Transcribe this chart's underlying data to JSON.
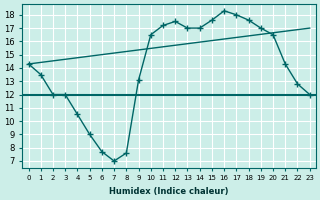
{
  "xlabel": "Humidex (Indice chaleur)",
  "ylabel": "",
  "bg_color": "#cceee8",
  "grid_color": "#ffffff",
  "line_color": "#006666",
  "xlim": [
    -0.5,
    23.5
  ],
  "ylim": [
    6.5,
    18.8
  ],
  "yticks": [
    7,
    8,
    9,
    10,
    11,
    12,
    13,
    14,
    15,
    16,
    17,
    18
  ],
  "xticks": [
    0,
    1,
    2,
    3,
    4,
    5,
    6,
    7,
    8,
    9,
    10,
    11,
    12,
    13,
    14,
    15,
    16,
    17,
    18,
    19,
    20,
    21,
    22,
    23
  ],
  "xtick_labels": [
    "0",
    "1",
    "2",
    "3",
    "4",
    "5",
    "6",
    "7",
    "8",
    "9",
    "10",
    "11",
    "12",
    "13",
    "14",
    "15",
    "16",
    "17",
    "18",
    "19",
    "20",
    "21",
    "22",
    "23"
  ],
  "humidex_x": [
    0,
    1,
    2,
    3,
    4,
    5,
    6,
    7,
    8,
    9,
    10,
    11,
    12,
    13,
    14,
    15,
    16,
    17,
    18,
    19,
    20,
    21,
    22,
    23
  ],
  "humidex_y": [
    14.3,
    13.5,
    12.0,
    12.0,
    10.5,
    9.0,
    7.7,
    7.0,
    7.6,
    13.1,
    16.5,
    17.2,
    17.5,
    17.0,
    17.0,
    17.6,
    18.3,
    18.0,
    17.6,
    17.0,
    16.5,
    14.3,
    12.8,
    12.0
  ],
  "horiz_line_y": 12.0,
  "diag_line_x": [
    0,
    23
  ],
  "diag_line_y": [
    14.3,
    17.0
  ]
}
